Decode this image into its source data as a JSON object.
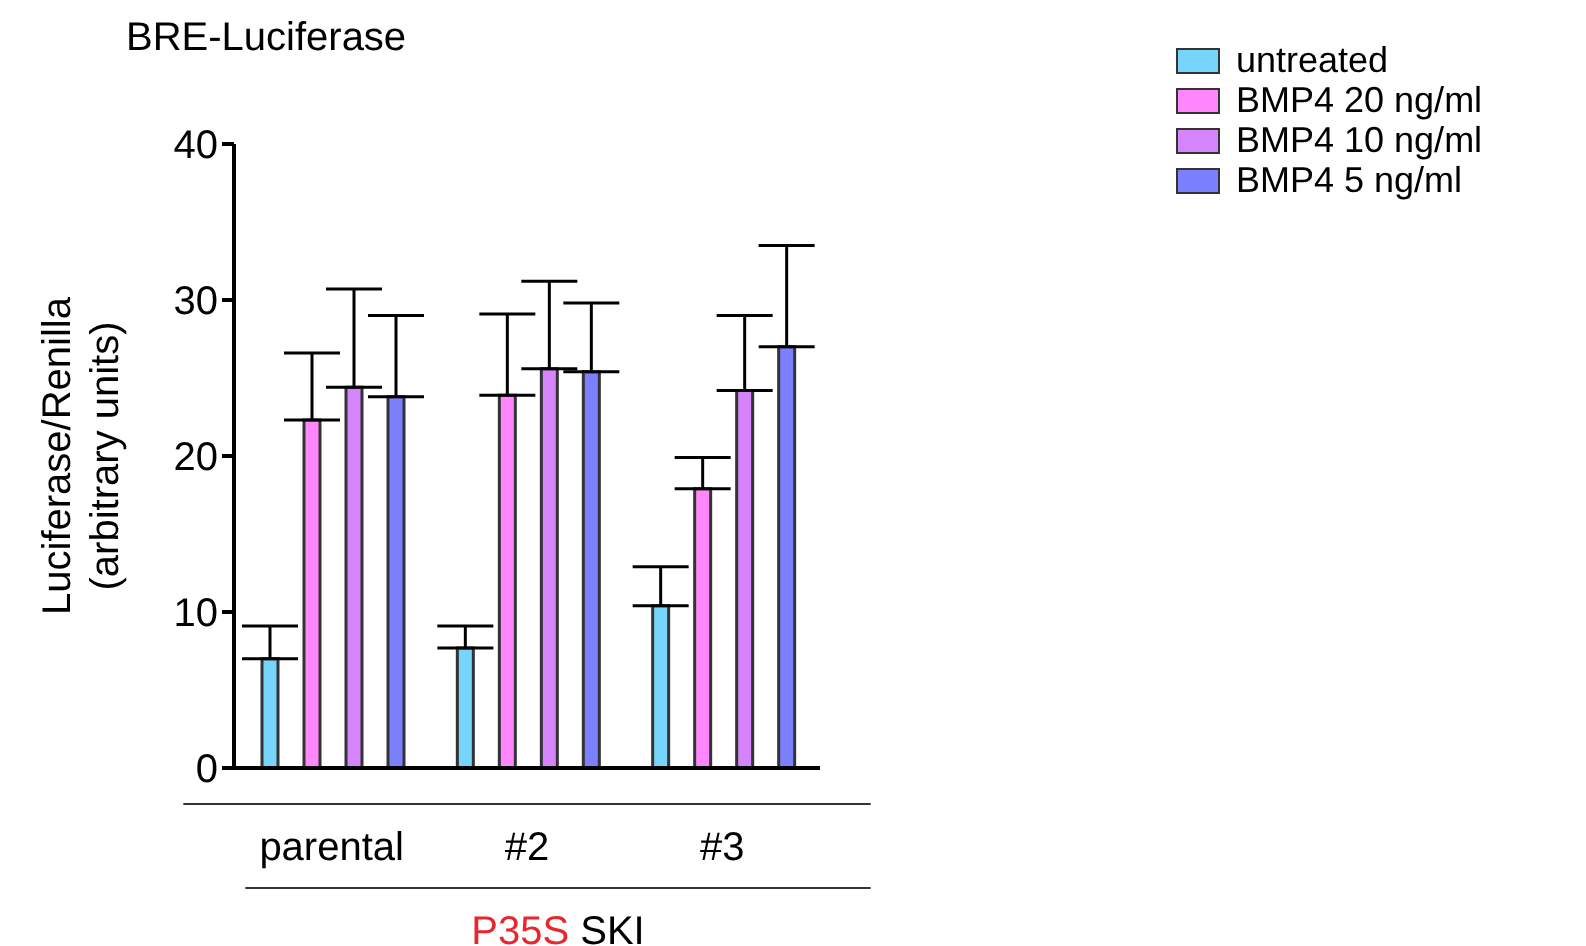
{
  "chart_data": {
    "type": "bar",
    "title": "BRE-Luciferase",
    "ylabel": "Luciferase/Renilla\n(arbitrary units)",
    "categories": [
      "parental",
      "#2",
      "#3"
    ],
    "series": [
      {
        "name": "untreated",
        "color": "#77d5fc",
        "values": [
          7.0,
          7.7,
          10.4
        ],
        "errors": [
          [
            7.0,
            9.1
          ],
          [
            7.7,
            9.1
          ],
          [
            10.4,
            12.9
          ]
        ]
      },
      {
        "name": "BMP4 20 ng/ml",
        "color": "#ff86fc",
        "values": [
          22.3,
          23.9,
          17.9
        ],
        "errors": [
          [
            22.3,
            26.6
          ],
          [
            23.9,
            29.1
          ],
          [
            17.9,
            19.9
          ]
        ]
      },
      {
        "name": "BMP4 10 ng/ml",
        "color": "#d584fc",
        "values": [
          24.4,
          25.6,
          24.2
        ],
        "errors": [
          [
            24.4,
            30.7
          ],
          [
            25.6,
            31.2
          ],
          [
            24.2,
            29.0
          ]
        ]
      },
      {
        "name": "BMP4 5 ng/ml",
        "color": "#7b80fe",
        "values": [
          23.8,
          25.4,
          27.0
        ],
        "errors": [
          [
            23.8,
            29.0
          ],
          [
            25.4,
            29.8
          ],
          [
            27.0,
            33.5
          ]
        ]
      }
    ],
    "ylim": [
      0,
      40
    ],
    "yticks": [
      0,
      10,
      20,
      30,
      40
    ],
    "grid": false,
    "legend": "top right",
    "annotations": [
      "P35S SKI"
    ]
  }
}
